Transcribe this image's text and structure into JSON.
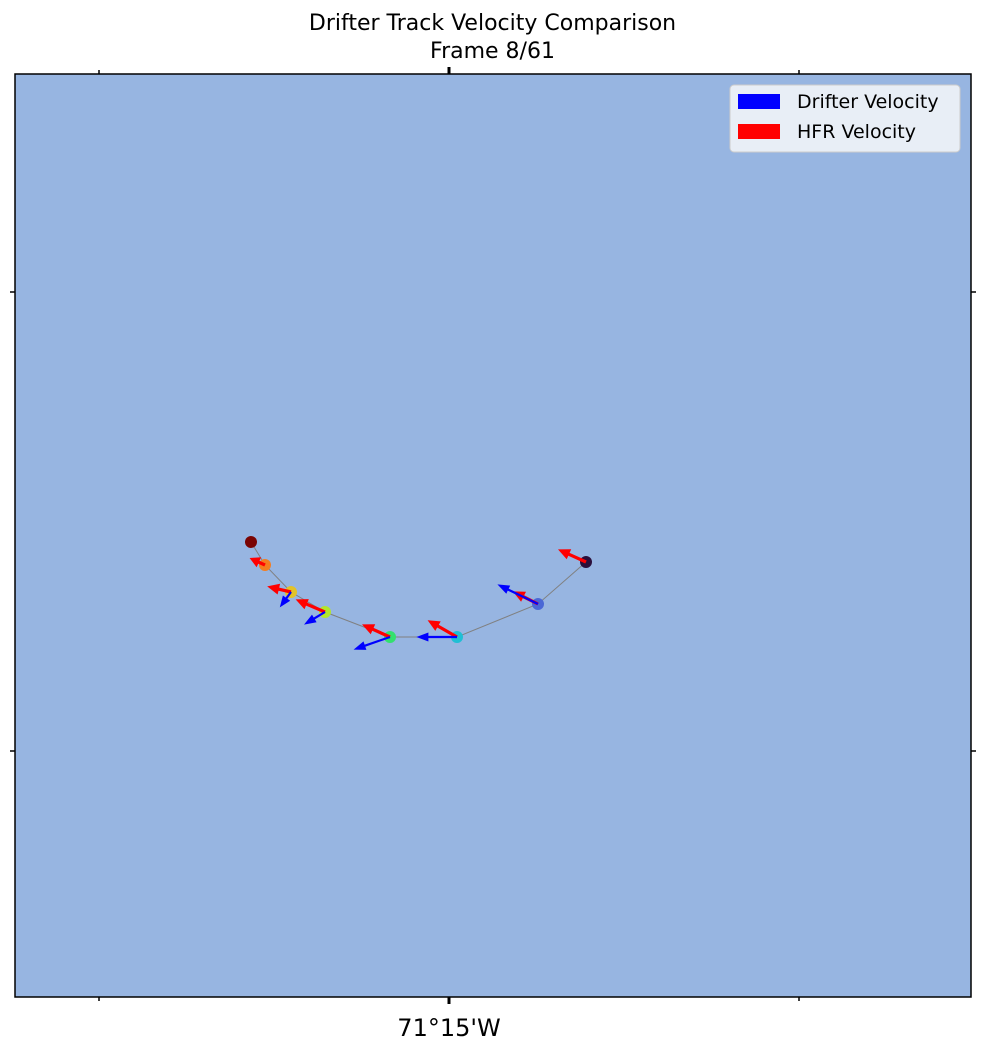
{
  "title": "Drifter Track Velocity Comparison",
  "subtitle": "Frame 8/61",
  "x_tick_label": "71°15'W",
  "colors": {
    "ocean": "#97b5e1",
    "drifter_arrow": "#0000ff",
    "hfr_arrow": "#ff0000",
    "track_line": "#808080",
    "legend_bg": "#e8eef6"
  },
  "legend": {
    "items": [
      {
        "label": "Drifter Velocity",
        "color": "#0000ff"
      },
      {
        "label": "HFR Velocity",
        "color": "#ff0000"
      }
    ]
  },
  "track_points": [
    {
      "color": "#2b0f3b",
      "drifter_arrow": false,
      "hfr_arrow": [
        -1.0,
        -0.45
      ]
    },
    {
      "color": "#4a68d6",
      "drifter_arrow": [
        -1.45,
        -0.7
      ],
      "hfr_arrow": [
        -0.9,
        -0.45
      ]
    },
    {
      "color": "#1fbfd4",
      "drifter_arrow": [
        -1.45,
        0.0
      ],
      "hfr_arrow": [
        -1.05,
        -0.6
      ]
    },
    {
      "color": "#33e06e",
      "drifter_arrow": [
        -1.3,
        0.45
      ],
      "hfr_arrow": [
        -1.0,
        -0.45
      ]
    },
    {
      "color": "#b3e62b",
      "drifter_arrow": [
        -0.75,
        0.45
      ],
      "hfr_arrow": [
        -1.05,
        -0.45
      ]
    },
    {
      "color": "#e3c227",
      "drifter_arrow": [
        -0.4,
        0.55
      ],
      "hfr_arrow": [
        -0.85,
        -0.2
      ]
    },
    {
      "color": "#f47d1f",
      "drifter_arrow": false,
      "hfr_arrow": [
        -0.55,
        -0.25
      ]
    },
    {
      "color": "#7a0403",
      "drifter_arrow": false,
      "hfr_arrow": false
    }
  ]
}
